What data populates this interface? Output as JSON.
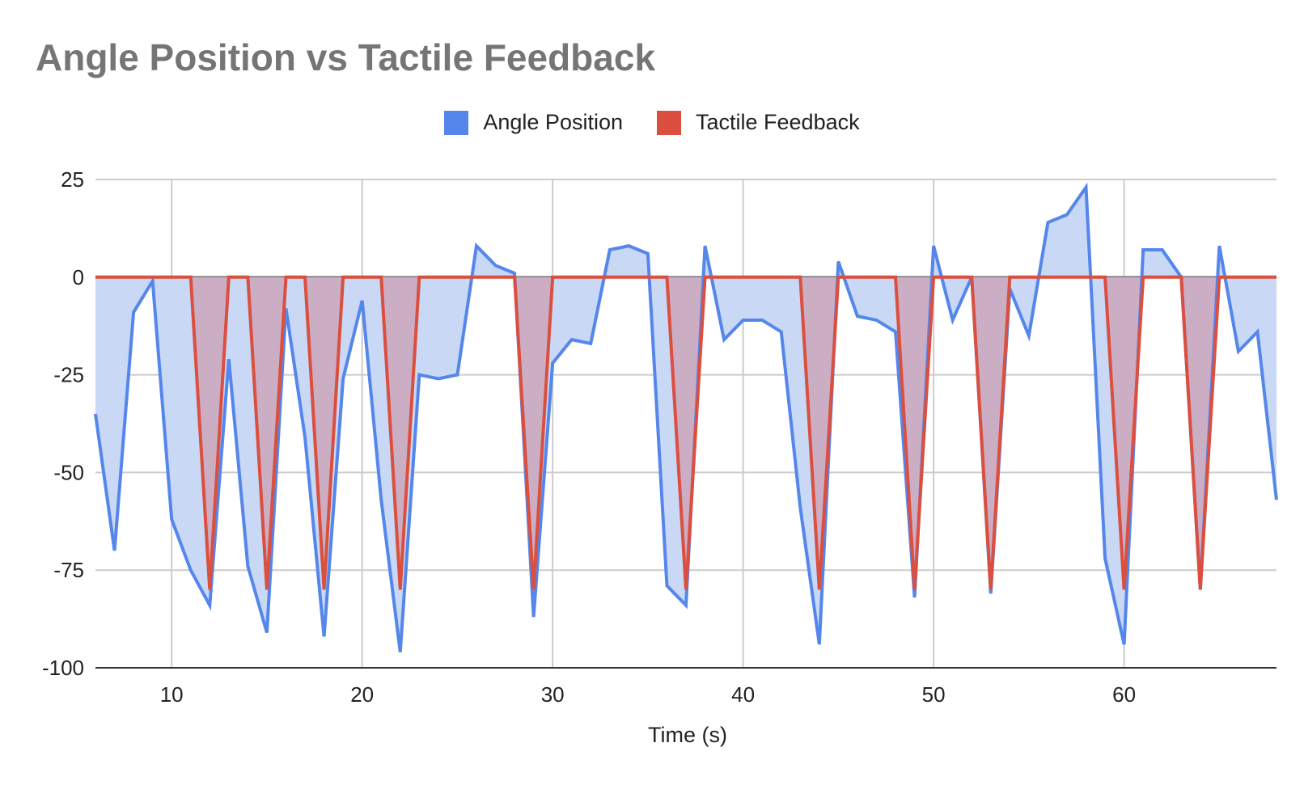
{
  "chart_data": {
    "type": "area",
    "title": "Angle Position vs Tactile Feedback",
    "xlabel": "Time (s)",
    "ylabel": "",
    "xlim": [
      6,
      68
    ],
    "ylim": [
      -100,
      25
    ],
    "xticks": [
      10,
      20,
      30,
      40,
      50,
      60
    ],
    "yticks": [
      25,
      0,
      -25,
      -50,
      -75,
      -100
    ],
    "grid": true,
    "legend_position": "top",
    "x": [
      6,
      7,
      8,
      9,
      10,
      11,
      12,
      13,
      14,
      15,
      16,
      17,
      18,
      19,
      20,
      21,
      22,
      23,
      24,
      25,
      26,
      27,
      28,
      29,
      30,
      31,
      32,
      33,
      34,
      35,
      36,
      37,
      38,
      39,
      40,
      41,
      42,
      43,
      44,
      45,
      46,
      47,
      48,
      49,
      50,
      51,
      52,
      53,
      54,
      55,
      56,
      57,
      58,
      59,
      60,
      61,
      62,
      63,
      64,
      65,
      66,
      67,
      68
    ],
    "series": [
      {
        "name": "Angle Position",
        "color": "#5586eb",
        "fill": "#c8d8f5",
        "values": [
          -35,
          -70,
          -9,
          -1,
          -62,
          -75,
          -84,
          -21,
          -74,
          -91,
          -8,
          -41,
          -92,
          -26,
          -6,
          -57,
          -96,
          -25,
          -26,
          -25,
          8,
          3,
          1,
          -87,
          -22,
          -16,
          -17,
          7,
          8,
          6,
          -79,
          -84,
          8,
          -16,
          -11,
          -11,
          -14,
          -59,
          -94,
          4,
          -10,
          -11,
          -14,
          -82,
          8,
          -11,
          0,
          -81,
          -3,
          -15,
          14,
          16,
          23,
          -72,
          -94,
          7,
          7,
          0,
          -80,
          8,
          -19,
          -14,
          -57
        ]
      },
      {
        "name": "Tactile Feedback",
        "color": "#db4f3f",
        "fill": "#cbaec4",
        "values": [
          0,
          0,
          0,
          0,
          0,
          0,
          -80,
          0,
          0,
          -80,
          0,
          0,
          -80,
          0,
          0,
          0,
          -80,
          0,
          0,
          0,
          0,
          0,
          0,
          -80,
          0,
          0,
          0,
          0,
          0,
          0,
          0,
          -80,
          0,
          0,
          0,
          0,
          0,
          0,
          -80,
          0,
          0,
          0,
          0,
          -80,
          0,
          0,
          0,
          -80,
          0,
          0,
          0,
          0,
          0,
          0,
          -80,
          0,
          0,
          0,
          -80,
          0,
          0,
          0,
          0
        ]
      }
    ]
  }
}
